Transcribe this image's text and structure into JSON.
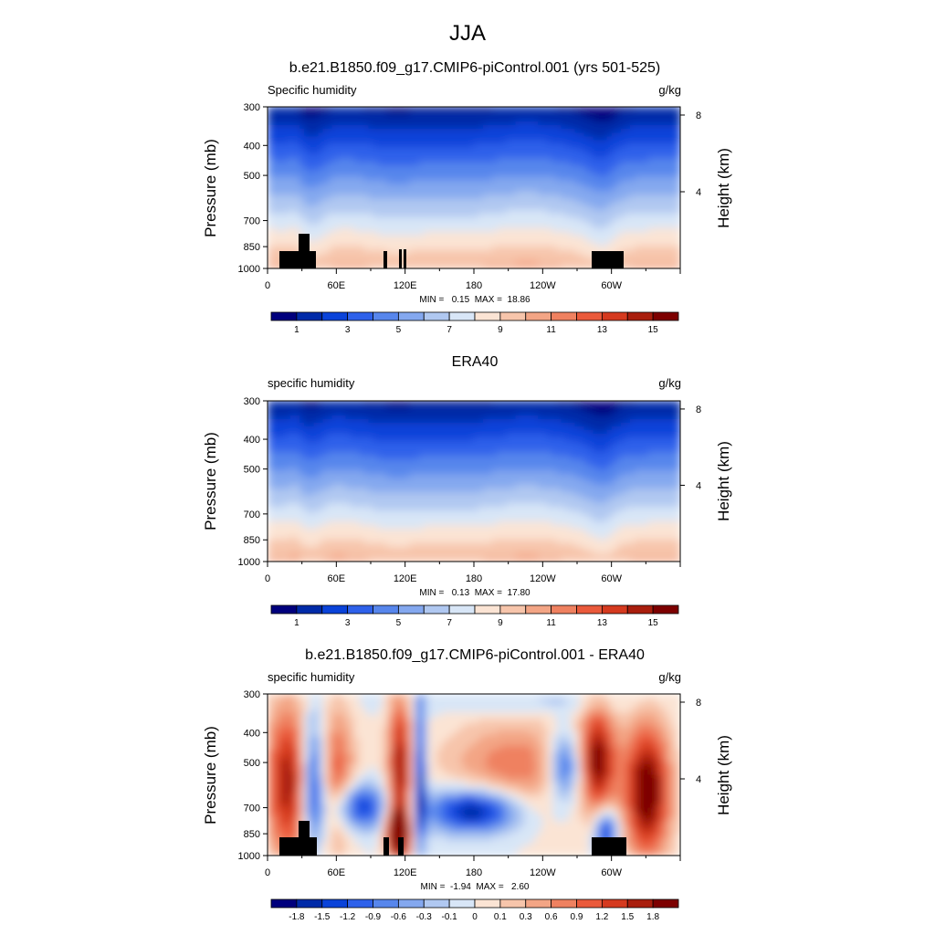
{
  "figure": {
    "title": "JJA"
  },
  "chart_data": [
    {
      "type": "heatmap",
      "title": "b.e21.B1850.f09_g17.CMIP6-piControl.001 (yrs 501-525)",
      "left_label": "Specific humidity",
      "units": "g/kg",
      "ylabel": "Pressure (mb)",
      "y2label": "Height (km)",
      "ylim": [
        1000,
        300
      ],
      "y_ticks": [
        300,
        400,
        500,
        700,
        850,
        1000
      ],
      "y2_ticks": [
        8,
        4
      ],
      "x_ticks": [
        "0",
        "60E",
        "120E",
        "180",
        "120W",
        "60W"
      ],
      "stats": "MIN =   0.15  MAX =  18.86",
      "min": 0.15,
      "max": 18.86,
      "colorbar_labels": [
        "1",
        "3",
        "5",
        "7",
        "9",
        "11",
        "13",
        "15"
      ]
    },
    {
      "type": "heatmap",
      "title": "ERA40",
      "left_label": "specific humidity",
      "units": "g/kg",
      "ylabel": "Pressure (mb)",
      "y2label": "Height (km)",
      "ylim": [
        1000,
        300
      ],
      "y_ticks": [
        300,
        400,
        500,
        700,
        850,
        1000
      ],
      "y2_ticks": [
        8,
        4
      ],
      "x_ticks": [
        "0",
        "60E",
        "120E",
        "180",
        "120W",
        "60W"
      ],
      "stats": "MIN =   0.13  MAX =  17.80",
      "min": 0.13,
      "max": 17.8,
      "colorbar_labels": [
        "1",
        "3",
        "5",
        "7",
        "9",
        "11",
        "13",
        "15"
      ]
    },
    {
      "type": "heatmap",
      "title": "b.e21.B1850.f09_g17.CMIP6-piControl.001 - ERA40",
      "left_label": "specific humidity",
      "units": "g/kg",
      "ylabel": "Pressure (mb)",
      "y2label": "Height (km)",
      "ylim": [
        1000,
        300
      ],
      "y_ticks": [
        300,
        400,
        500,
        700,
        850,
        1000
      ],
      "y2_ticks": [
        8,
        4
      ],
      "x_ticks": [
        "0",
        "60E",
        "120E",
        "180",
        "120W",
        "60W"
      ],
      "stats": "MIN =  -1.94  MAX =   2.60",
      "min": -1.94,
      "max": 2.6,
      "colorbar_labels": [
        "-1.8",
        "-1.5",
        "-1.2",
        "-0.9",
        "-0.6",
        "-0.3",
        "-0.1",
        "0",
        "0.1",
        "0.3",
        "0.6",
        "0.9",
        "1.2",
        "1.5",
        "1.8"
      ]
    }
  ],
  "colors": {
    "ramp": [
      "#00007d",
      "#002aa8",
      "#0a43d9",
      "#2e61ea",
      "#5786ec",
      "#84a8ef",
      "#b0c8f1",
      "#d8e6f7",
      "#fbe4d4",
      "#f7c5ab",
      "#f3a585",
      "#ef8160",
      "#ea5a3b",
      "#d53a1f",
      "#a91e0d",
      "#7d0000"
    ],
    "terrain": "#000000"
  }
}
